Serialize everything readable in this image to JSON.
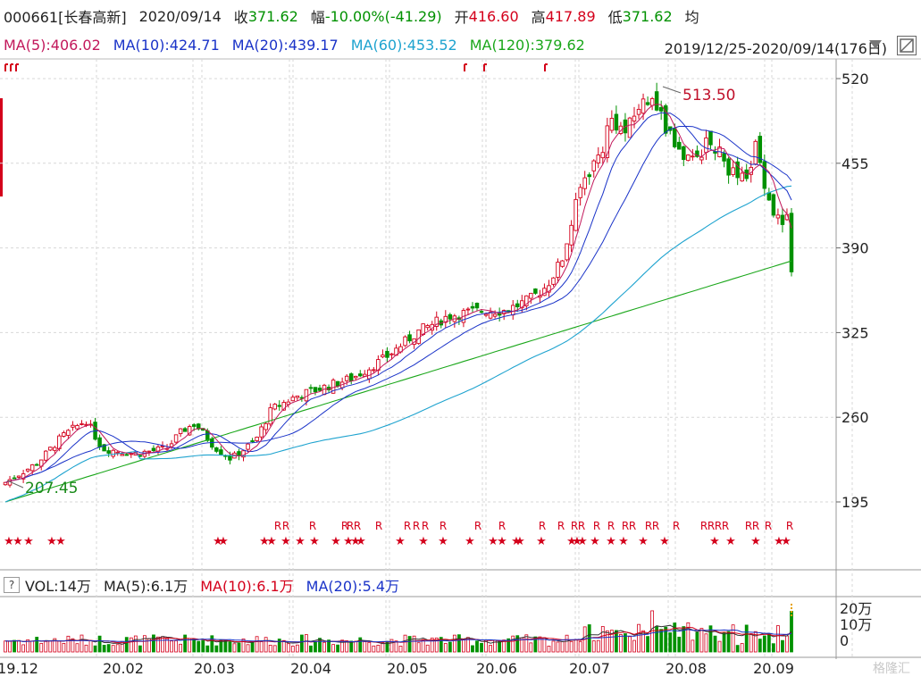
{
  "header": {
    "code_name": "000661[长春高新]",
    "date": "2020/09/14",
    "close_label": "收",
    "close_value": "371.62",
    "change_label": "幅",
    "change_value": "-10.00%(-41.29)",
    "open_label": "开",
    "open_value": "416.60",
    "high_label": "高",
    "high_value": "417.89",
    "low_label": "低",
    "low_value": "371.62",
    "avg_label": "均"
  },
  "ma_bar": {
    "ma5": "MA(5):406.02",
    "ma10": "MA(10):424.71",
    "ma20": "MA(20):439.17",
    "ma60": "MA(60):453.52",
    "ma120": "MA(120):379.62",
    "range": "2019/12/25-2020/09/14(176日)"
  },
  "vol_bar": {
    "help": "?",
    "vol": "VOL:14万",
    "ma5": "MA(5):6.1万",
    "ma10": "MA(10):6.1万",
    "ma20": "MA(20):5.4万"
  },
  "watermark": "格隆汇",
  "colors": {
    "up": "#d4001b",
    "down": "#009100",
    "ma5": "#c2185b",
    "ma10": "#1a33c8",
    "ma20": "#1a33c8",
    "ma60": "#1ea3cf",
    "ma120": "#1ba71b",
    "grid": "#d7d7d7"
  },
  "chart_data": {
    "type": "candlestick",
    "price_axis": {
      "ticks": [
        520,
        455,
        390,
        325,
        260,
        195
      ],
      "min": 160,
      "max": 530
    },
    "volume_axis": {
      "ticks": [
        "20万",
        "10万",
        "0"
      ]
    },
    "x_ticks": [
      "19.12",
      "20.02",
      "20.03",
      "20.04",
      "20.05",
      "20.06",
      "20.07",
      "20.08",
      "20.09"
    ],
    "annotations": {
      "max_label": "513.50",
      "min_label": "207.45"
    },
    "key_points": {
      "start_close": 210,
      "end_close": 371.62,
      "peak": 513.5
    },
    "signal_labels": {
      "star": "★",
      "r": "R"
    }
  }
}
